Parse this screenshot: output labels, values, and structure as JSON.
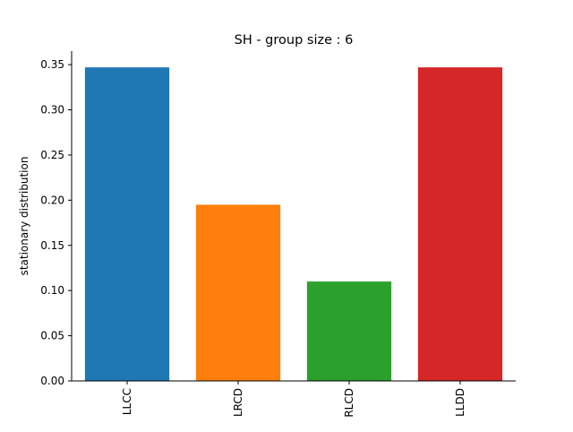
{
  "chart_data": {
    "type": "bar",
    "title": "SH - group size : 6",
    "xlabel": "",
    "ylabel": "stationary distribution",
    "categories": [
      "LLCC",
      "LRCD",
      "RLCD",
      "LLDD"
    ],
    "values": [
      0.347,
      0.195,
      0.11,
      0.347
    ],
    "colors": [
      "#1f77b4",
      "#ff7f0e",
      "#2ca02c",
      "#d62728"
    ],
    "ylim": [
      0,
      0.365
    ],
    "yticks": [
      0.0,
      0.05,
      0.1,
      0.15,
      0.2,
      0.25,
      0.3,
      0.35
    ],
    "ytick_labels": [
      "0.00",
      "0.05",
      "0.10",
      "0.15",
      "0.20",
      "0.25",
      "0.30",
      "0.35"
    ],
    "grid": false,
    "legend": "none"
  }
}
